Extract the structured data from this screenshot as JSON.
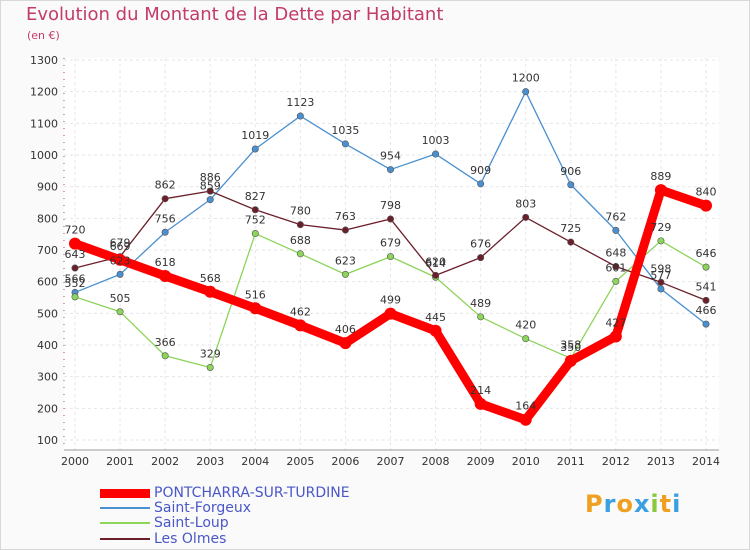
{
  "title": "Evolution du Montant de la Dette par Habitant",
  "unit": "(en €)",
  "chart_data": {
    "type": "line",
    "x": [
      2000,
      2001,
      2002,
      2003,
      2004,
      2005,
      2006,
      2007,
      2008,
      2009,
      2010,
      2011,
      2012,
      2013,
      2014
    ],
    "yticks": [
      100,
      200,
      300,
      400,
      500,
      600,
      700,
      800,
      900,
      1000,
      1100,
      1200,
      1300
    ],
    "ylim": [
      100,
      1300
    ],
    "grid": true,
    "legend_position": "bottom-left",
    "series": [
      {
        "name": "PONTCHARRA-SUR-TURDINE",
        "color": "#ff0000",
        "values": [
          720,
          669,
          618,
          568,
          516,
          462,
          406,
          499,
          445,
          214,
          164,
          350,
          427,
          889,
          840
        ],
        "labels": [
          "720",
          "669",
          "618",
          "568",
          "516",
          "462",
          "406",
          "499",
          "445",
          "214",
          "164",
          "350",
          "427",
          "889",
          "840"
        ]
      },
      {
        "name": "Saint-Forgeux",
        "color": "#4a90d0",
        "values": [
          566,
          623,
          756,
          859,
          1019,
          1123,
          1035,
          954,
          1003,
          909,
          1200,
          906,
          762,
          577,
          466
        ],
        "labels": [
          "566",
          "623",
          "756",
          "859",
          "1019",
          "1123",
          "1035",
          "954",
          "1003",
          "909",
          "1200",
          "906",
          "762",
          "577",
          "466"
        ]
      },
      {
        "name": "Saint-Loup",
        "color": "#8cd45a",
        "values": [
          552,
          505,
          366,
          329,
          752,
          688,
          623,
          679,
          614,
          489,
          420,
          358,
          601,
          729,
          646
        ],
        "labels": [
          "552",
          "505",
          "366",
          "329",
          "752",
          "688",
          "623",
          "679",
          "614",
          "489",
          "420",
          "358",
          "601",
          "729",
          "646"
        ]
      },
      {
        "name": "Les Olmes",
        "color": "#6b1f2a",
        "values": [
          643,
          679,
          862,
          886,
          827,
          780,
          763,
          798,
          620,
          676,
          803,
          725,
          648,
          598,
          541
        ],
        "labels": [
          "643",
          "679",
          "862",
          "886",
          "827",
          "780",
          "763",
          "798",
          "620",
          "676",
          "803",
          "725",
          "648",
          "598",
          "541"
        ]
      }
    ]
  },
  "logo": {
    "letters": [
      "P",
      "r",
      "o",
      "x",
      "i",
      "t",
      "i"
    ],
    "colors": [
      "#f0a020",
      "#3aa0e0",
      "#f0a020",
      "#3aa0e0",
      "#8cc83c",
      "#f0a020",
      "#3aa0e0"
    ]
  }
}
